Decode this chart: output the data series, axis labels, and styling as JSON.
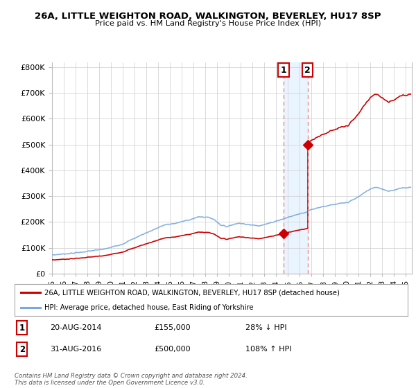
{
  "title1": "26A, LITTLE WEIGHTON ROAD, WALKINGTON, BEVERLEY, HU17 8SP",
  "title2": "Price paid vs. HM Land Registry's House Price Index (HPI)",
  "legend_line1": "26A, LITTLE WEIGHTON ROAD, WALKINGTON, BEVERLEY, HU17 8SP (detached house)",
  "legend_line2": "HPI: Average price, detached house, East Riding of Yorkshire",
  "annotation1_label": "1",
  "annotation1_date": "20-AUG-2014",
  "annotation1_price": "£155,000",
  "annotation1_hpi": "28% ↓ HPI",
  "annotation2_label": "2",
  "annotation2_date": "31-AUG-2016",
  "annotation2_price": "£500,000",
  "annotation2_hpi": "108% ↑ HPI",
  "footnote": "Contains HM Land Registry data © Crown copyright and database right 2024.\nThis data is licensed under the Open Government Licence v3.0.",
  "sale1_x": 2014.64,
  "sale1_y": 155000,
  "sale2_x": 2016.66,
  "sale2_y": 500000,
  "hpi_color": "#7aaadd",
  "price_color": "#cc0000",
  "marker_color": "#cc0000",
  "vline_color": "#ee8888",
  "shade_color": "#ddeeff",
  "ylim": [
    0,
    820000
  ],
  "xlim_start": 1995,
  "xlim_end": 2025.5,
  "background_color": "#ffffff",
  "grid_color": "#cccccc"
}
